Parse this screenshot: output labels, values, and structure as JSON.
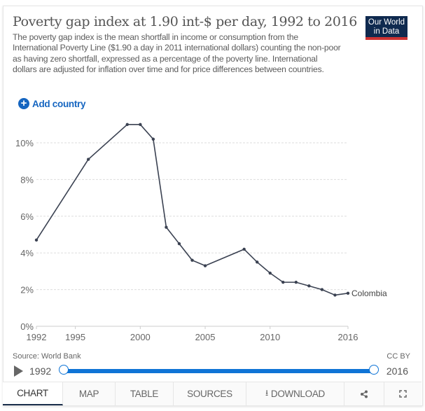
{
  "header": {
    "title": "Poverty gap index at 1.90 int-$ per day, 1992 to 2016",
    "subtitle": "The poverty gap index is the mean shortfall in income or consumption from the International Poverty Line ($1.90 a day in 2011 international dollars) counting the non-poor as having zero shortfall, expressed as a percentage of the poverty line. International dollars are adjusted for inflation over time and for price differences between countries.",
    "logo_line1": "Our World",
    "logo_line2": "in Data"
  },
  "controls": {
    "add_country_icon": "plus-circle-icon",
    "add_country_label": "Add country"
  },
  "chart_data": {
    "type": "line",
    "title": "Poverty gap index at 1.90 int-$ per day, 1992 to 2016",
    "xlabel": "",
    "ylabel": "",
    "xlim": [
      1992,
      2016
    ],
    "ylim": [
      0,
      11
    ],
    "grid": true,
    "x_ticks": [
      "1992",
      "1995",
      "2000",
      "2005",
      "2010",
      "2016"
    ],
    "y_ticks": [
      "0%",
      "2%",
      "4%",
      "6%",
      "8%",
      "10%"
    ],
    "y_tick_values": [
      0,
      2,
      4,
      6,
      8,
      10
    ],
    "x_tick_values": [
      1992,
      1995,
      2000,
      2005,
      2010,
      2016
    ],
    "series": [
      {
        "name": "Colombia",
        "color": "#3b4252",
        "x": [
          1992,
          1996,
          1999,
          2000,
          2001,
          2002,
          2003,
          2004,
          2005,
          2008,
          2009,
          2010,
          2011,
          2012,
          2013,
          2014,
          2015,
          2016
        ],
        "values": [
          4.7,
          9.1,
          11.0,
          11.0,
          10.2,
          5.4,
          4.5,
          3.6,
          3.3,
          4.2,
          3.5,
          2.9,
          2.4,
          2.4,
          2.2,
          2.0,
          1.7,
          1.8
        ]
      }
    ]
  },
  "footer": {
    "source": "Source: World Bank",
    "license": "CC BY",
    "timeline_start": "1992",
    "timeline_end": "2016",
    "play_icon": "play-icon"
  },
  "tabs": [
    {
      "label": "CHART",
      "active": true
    },
    {
      "label": "MAP"
    },
    {
      "label": "TABLE"
    },
    {
      "label": "SOURCES"
    },
    {
      "label": "DOWNLOAD",
      "icon": "download-icon"
    },
    {
      "label": "",
      "icon": "share-icon"
    },
    {
      "label": "",
      "icon": "fullscreen-icon"
    }
  ],
  "colors": {
    "accent": "#0f74d6",
    "line": "#3b4252",
    "logo_bg": "#0f2a4f",
    "logo_bar": "#cc3333"
  }
}
